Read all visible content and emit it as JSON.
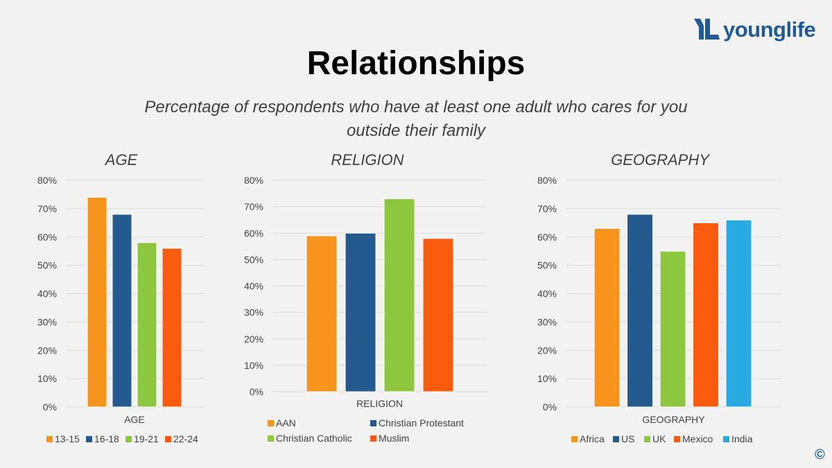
{
  "logo": {
    "text": "younglife",
    "icon": "younglife-yl-logo-icon",
    "color": "#1f5b9b"
  },
  "title": "Relationships",
  "subtitle": "Percentage of respondents who have at least one adult who cares for you outside their family",
  "copyright": "©",
  "colors": {
    "orange": "#f7941d",
    "navy": "#255a8f",
    "green": "#8dc63f",
    "red_orange": "#fa5b0f",
    "sky": "#29abe2",
    "grid": "#d9d9d9"
  },
  "chart_data": [
    {
      "type": "bar",
      "panel_title": "AGE",
      "xlabel": "AGE",
      "ylabel": "",
      "ylim": [
        0,
        80
      ],
      "yticks": [
        "0%",
        "10%",
        "20%",
        "30%",
        "40%",
        "50%",
        "60%",
        "70%",
        "80%"
      ],
      "grid": true,
      "legend_position": "bottom",
      "series": [
        {
          "name": "13-15",
          "value": 74,
          "color": "#f7941d"
        },
        {
          "name": "16-18",
          "value": 68,
          "color": "#255a8f"
        },
        {
          "name": "19-21",
          "value": 58,
          "color": "#8dc63f"
        },
        {
          "name": "22-24",
          "value": 56,
          "color": "#fa5b0f"
        }
      ]
    },
    {
      "type": "bar",
      "panel_title": "RELIGION",
      "xlabel": "RELIGION",
      "ylabel": "",
      "ylim": [
        0,
        80
      ],
      "yticks": [
        "0%",
        "10%",
        "20%",
        "30%",
        "40%",
        "50%",
        "60%",
        "70%",
        "80%"
      ],
      "grid": true,
      "legend_position": "bottom",
      "series": [
        {
          "name": "AAN",
          "value": 59,
          "color": "#f7941d"
        },
        {
          "name": "Christian Protestant",
          "value": 60,
          "color": "#255a8f"
        },
        {
          "name": "Christian Catholic",
          "value": 73,
          "color": "#8dc63f"
        },
        {
          "name": "Muslim",
          "value": 58,
          "color": "#fa5b0f"
        }
      ]
    },
    {
      "type": "bar",
      "panel_title": "GEOGRAPHY",
      "xlabel": "GEOGRAPHY",
      "ylabel": "",
      "ylim": [
        0,
        80
      ],
      "yticks": [
        "0%",
        "10%",
        "20%",
        "30%",
        "40%",
        "50%",
        "60%",
        "70%",
        "80%"
      ],
      "grid": true,
      "legend_position": "bottom",
      "series": [
        {
          "name": "Africa",
          "value": 63,
          "color": "#f7941d"
        },
        {
          "name": "US",
          "value": 68,
          "color": "#255a8f"
        },
        {
          "name": "UK",
          "value": 55,
          "color": "#8dc63f"
        },
        {
          "name": "Mexico",
          "value": 65,
          "color": "#fa5b0f"
        },
        {
          "name": "India",
          "value": 66,
          "color": "#29abe2"
        }
      ]
    }
  ]
}
